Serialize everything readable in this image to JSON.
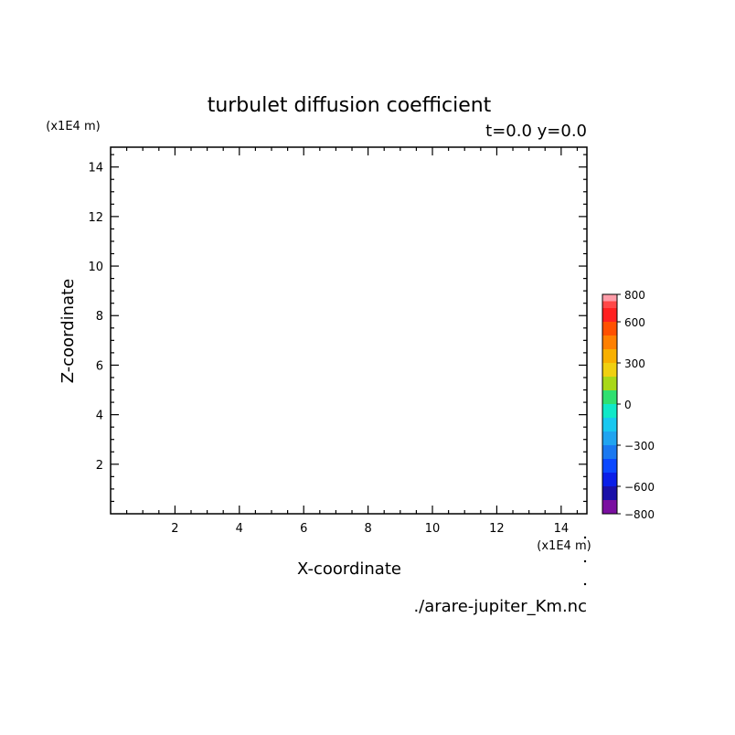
{
  "chart_data": {
    "type": "heatmap",
    "title": "turbulet diffusion coefficient",
    "subtitle": "t=0.0 y=0.0",
    "xlabel": "X-coordinate",
    "ylabel": "Z-coordinate",
    "x_unit_label": "(x1E4 m)",
    "y_unit_label": "(x1E4 m)",
    "xlim": [
      0,
      14.8
    ],
    "ylim": [
      0,
      14.8
    ],
    "x_ticks": [
      2,
      4,
      6,
      8,
      10,
      12,
      14
    ],
    "y_ticks": [
      2,
      4,
      6,
      8,
      10,
      12,
      14
    ],
    "x_tick_labels": [
      "2",
      "4",
      "6",
      "8",
      "10",
      "12",
      "14"
    ],
    "y_tick_labels": [
      "2",
      "4",
      "6",
      "8",
      "10",
      "12",
      "14"
    ],
    "grid": false,
    "field_values": [],
    "colorbar": {
      "range": [
        -800,
        800
      ],
      "tick_values": [
        800,
        600,
        300,
        0,
        -300,
        -600,
        -800
      ],
      "tick_labels": [
        "800",
        "600",
        "300",
        "0",
        "−300",
        "−600",
        "−800"
      ],
      "levels": [
        {
          "from": -800,
          "to": -700,
          "color": "#7a0fa0"
        },
        {
          "from": -700,
          "to": -600,
          "color": "#1a10a8"
        },
        {
          "from": -600,
          "to": -500,
          "color": "#0a1ee8"
        },
        {
          "from": -500,
          "to": -400,
          "color": "#0a48ff"
        },
        {
          "from": -400,
          "to": -300,
          "color": "#1a78f0"
        },
        {
          "from": -300,
          "to": -200,
          "color": "#20a4f0"
        },
        {
          "from": -200,
          "to": -100,
          "color": "#18c8f0"
        },
        {
          "from": -100,
          "to": 0,
          "color": "#10e8c8"
        },
        {
          "from": 0,
          "to": 100,
          "color": "#30e070"
        },
        {
          "from": 100,
          "to": 200,
          "color": "#a8d818"
        },
        {
          "from": 200,
          "to": 300,
          "color": "#f0d010"
        },
        {
          "from": 300,
          "to": 400,
          "color": "#f8b000"
        },
        {
          "from": 400,
          "to": 500,
          "color": "#ff8000"
        },
        {
          "from": 500,
          "to": 600,
          "color": "#ff5000"
        },
        {
          "from": 600,
          "to": 700,
          "color": "#ff2020"
        },
        {
          "from": 700,
          "to": 750,
          "color": "#ff4848"
        },
        {
          "from": 750,
          "to": 800,
          "color": "#ff9ca8"
        }
      ]
    }
  },
  "footer": {
    "filename": "./arare-jupiter_Km.nc"
  }
}
